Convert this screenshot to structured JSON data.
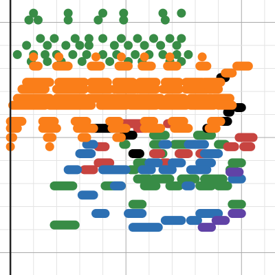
{
  "chart_data": {
    "type": "dash-plot",
    "xlim": [
      -0.45,
      11.45
    ],
    "ylim": [
      -5.97,
      5.97
    ],
    "xticks": [
      0,
      1,
      2,
      3,
      4,
      5,
      6,
      7,
      8,
      9,
      10,
      11
    ],
    "yticks": [
      -5,
      -4,
      -3,
      -2,
      -1,
      0,
      1,
      2,
      3,
      4,
      5
    ],
    "grid": true,
    "major_every": 5,
    "series": [
      {
        "color": "#388c46",
        "rows": [
          {
            "y": 5.4,
            "x": [
              1.0,
              2.5,
              4.0,
              4.9,
              6.6,
              7.4
            ]
          },
          {
            "y": 5.1,
            "x": [
              0.8,
              1.2,
              2.5,
              3.8,
              4.9,
              6.7
            ]
          },
          {
            "y": 4.3,
            "x": [
              1.3,
              1.9,
              2.8,
              3.4,
              4.0,
              4.8,
              5.5,
              6.2,
              6.9,
              7.4
            ]
          },
          {
            "y": 4.0,
            "x": [
              0.7,
              1.6,
              2.4,
              3.0,
              3.4,
              4.5,
              5.1,
              5.8,
              6.5,
              7.2
            ]
          },
          {
            "y": 3.6,
            "x": [
              0.3,
              1.0,
              1.5,
              2.0,
              2.7,
              3.3,
              4.0,
              4.6,
              5.4,
              6.0,
              6.6,
              7.2,
              7.7
            ]
          },
          {
            "y": 3.3,
            "x": [
              0.9,
              1.6,
              2.2,
              3.1,
              4.3,
              5.1,
              5.7,
              6.9,
              7.4
            ]
          },
          {
            "y": 0.1,
            "x_start": [
              6.2,
              8.1
            ],
            "x_end": [
              6.7,
              8.7
            ]
          },
          {
            "y": -0.3,
            "x_start": [
              4.9,
              6.2,
              7.1,
              9.0
            ],
            "x_end": [
              5.0,
              6.5,
              7.7,
              9.3
            ]
          },
          {
            "y": -0.7,
            "x_start": [
              5.3,
              6.2,
              7.3
            ],
            "x_end": [
              5.6,
              6.6,
              7.6
            ]
          },
          {
            "y": -1.1,
            "x_start": [
              5.5,
              9.6
            ],
            "x_end": [
              5.8,
              10.0
            ]
          },
          {
            "y": -1.4,
            "x_start": [
              5.2,
              9.5
            ],
            "x_end": [
              5.4,
              9.7
            ]
          },
          {
            "y": -1.8,
            "x_start": [
              5.5,
              6.2,
              7.4,
              8.4
            ],
            "x_end": [
              6.0,
              6.9,
              8.0,
              9.2
            ]
          },
          {
            "y": -2.1,
            "x_start": [
              1.9,
              4.1,
              5.8,
              6.9,
              8.2,
              9.0
            ],
            "x_end": [
              2.7,
              4.8,
              6.3,
              7.3,
              8.7,
              9.4
            ]
          },
          {
            "y": -2.9,
            "x_start": [
              5.3,
              9.6
            ],
            "x_end": [
              5.7,
              10.0
            ]
          },
          {
            "y": -3.8,
            "x_start": [
              1.9
            ],
            "x_end": [
              2.8
            ]
          }
        ]
      },
      {
        "color": "#c74440",
        "rows": [
          {
            "y": 0.6,
            "x_start": [
              4.6,
              6.8
            ],
            "x_end": [
              5.6,
              7.2
            ]
          },
          {
            "y": 0.4,
            "x_start": [
              5.5
            ],
            "x_end": [
              5.9
            ]
          },
          {
            "y": 0.0,
            "x_start": [
              9.9
            ],
            "x_end": [
              10.5
            ]
          },
          {
            "y": -0.4,
            "x_start": [
              3.8,
              9.4,
              10.1
            ],
            "x_end": [
              4.1,
              9.7,
              10.4
            ]
          },
          {
            "y": -0.7,
            "x_start": [
              6.2,
              7.3,
              8.2
            ],
            "x_end": [
              6.5,
              7.7,
              8.5
            ]
          },
          {
            "y": -1.1,
            "x_start": [
              3.8,
              6.6
            ],
            "x_end": [
              4.3,
              6.8
            ]
          },
          {
            "y": -1.4,
            "x_start": [
              3.2
            ],
            "x_end": [
              3.6
            ]
          }
        ]
      },
      {
        "color": "#2d70b3",
        "rows": [
          {
            "y": -0.3,
            "x_start": [
              3.3,
              6.6,
              7.7
            ],
            "x_end": [
              3.6,
              6.8,
              8.4
            ]
          },
          {
            "y": -0.7,
            "x_start": [
              3.0,
              8.4
            ],
            "x_end": [
              3.5,
              9.0
            ]
          },
          {
            "y": -1.1,
            "x_start": [
              6.0,
              7.0,
              8.2
            ],
            "x_end": [
              6.4,
              7.4,
              8.7
            ]
          },
          {
            "y": -1.4,
            "x_start": [
              2.5,
              4.0,
              5.7,
              6.6,
              7.8
            ],
            "x_end": [
              2.9,
              5.0,
              6.1,
              7.0,
              8.5
            ]
          },
          {
            "y": -1.8,
            "x_start": [
              9.6
            ],
            "x_end": [
              10.0
            ]
          },
          {
            "y": -2.1,
            "x_start": [
              4.5,
              7.6
            ],
            "x_end": [
              4.8,
              7.8
            ]
          },
          {
            "y": -2.5,
            "x_start": [
              3.1
            ],
            "x_end": [
              3.6
            ]
          },
          {
            "y": -3.3,
            "x_start": [
              3.7,
              5.1,
              8.2
            ],
            "x_end": [
              4.1,
              5.7,
              9.0
            ]
          },
          {
            "y": -3.6,
            "x_start": [
              6.7,
              7.8
            ],
            "x_end": [
              7.4,
              8.1
            ]
          },
          {
            "y": -3.9,
            "x_start": [
              5.3
            ],
            "x_end": [
              6.4
            ]
          }
        ]
      },
      {
        "color": "#6042a6",
        "rows": [
          {
            "y": -1.5,
            "x_start": [
              9.5
            ],
            "x_end": [
              9.9
            ]
          },
          {
            "y": -3.3,
            "x_start": [
              9.6
            ],
            "x_end": [
              10.0
            ]
          },
          {
            "y": -3.6,
            "x_start": [
              8.9
            ],
            "x_end": [
              9.3
            ]
          },
          {
            "y": -3.9,
            "x_start": [
              8.3
            ],
            "x_end": [
              8.7
            ]
          }
        ]
      },
      {
        "color": "#000000",
        "rows": [
          {
            "y": 2.6,
            "x_start": [
              9.1
            ],
            "x_end": [
              9.3
            ]
          },
          {
            "y": 1.3,
            "x_start": [
              9.8
            ],
            "x_end": [
              10.0
            ]
          },
          {
            "y": 1.1,
            "x_start": [
              9.4
            ],
            "x_end": [
              9.5
            ]
          },
          {
            "y": 0.7,
            "x_start": [
              9.1
            ],
            "x_end": [
              9.4
            ]
          },
          {
            "y": 0.4,
            "x_start": [
              3.5,
              8.5
            ],
            "x_end": [
              4.7,
              8.7
            ]
          },
          {
            "y": 0.1,
            "x_start": [
              4.9
            ],
            "x_end": [
              5.3
            ]
          },
          {
            "y": -0.7,
            "x_start": [
              5.3
            ],
            "x_end": [
              5.6
            ]
          }
        ]
      },
      {
        "color": "#fa7e19",
        "rows": [
          {
            "y": 3.5,
            "x": [
              1.0,
              2.1,
              3.7,
              4.8,
              5.8,
              6.9,
              8.3
            ]
          },
          {
            "y": 3.1,
            "x_start": [
              1.0,
              2.0,
              3.5,
              4.7,
              5.7,
              6.8,
              8.2,
              9.8
            ],
            "x_end": [
              1.2,
              2.5,
              3.9,
              5.1,
              6.1,
              7.2,
              8.5,
              10.3
            ]
          },
          {
            "y": 2.8,
            "x_start": [
              9.3
            ],
            "x_end": [
              9.6
            ]
          },
          {
            "y": 2.4,
            "x_start": [
              0.7,
              2.1,
              3.5,
              4.6,
              5.6,
              6.7,
              7.6,
              8.4
            ],
            "x_end": [
              1.7,
              3.2,
              4.2,
              5.3,
              6.3,
              7.3,
              8.3,
              9.1
            ]
          },
          {
            "y": 2.1,
            "x_start": [
              0.5,
              2.0,
              3.5,
              4.5,
              5.5,
              6.6,
              7.6,
              8.6
            ],
            "x_end": [
              1.5,
              3.2,
              4.3,
              5.4,
              6.3,
              7.3,
              8.5,
              9.0
            ]
          },
          {
            "y": 1.7,
            "x_start": [
              0.3,
              2.0,
              3.4,
              4.6,
              5.6,
              6.8,
              7.8,
              8.8
            ],
            "x_end": [
              1.7,
              3.2,
              4.5,
              5.5,
              6.5,
              7.5,
              8.7,
              9.5
            ]
          },
          {
            "y": 1.4,
            "x_start": [
              0.1,
              1.7,
              3.9,
              5.2,
              6.5,
              7.8,
              9.0
            ],
            "x_end": [
              1.5,
              3.5,
              5.0,
              6.3,
              7.6,
              8.8,
              9.6
            ]
          },
          {
            "y": 0.7,
            "x_start": [
              0.0,
              1.4,
              2.8,
              4.3,
              5.8,
              7.0,
              8.7
            ],
            "x_end": [
              0.5,
              1.9,
              3.3,
              4.7,
              6.2,
              7.5,
              9.1
            ]
          },
          {
            "y": 0.4,
            "x_start": [
              0.0,
              1.4,
              2.9,
              4.4,
              5.8,
              7.1,
              8.6
            ],
            "x_end": [
              0.3,
              2.0,
              3.6,
              5.0,
              6.5,
              7.7,
              8.9
            ]
          },
          {
            "y": 0.0,
            "x_start": [
              0.0,
              1.6,
              3.1,
              4.6
            ],
            "x_end": [
              0.1,
              1.8,
              3.3,
              4.8
            ]
          },
          {
            "y": -0.4,
            "x": [
              0.0,
              1.7
            ]
          }
        ]
      }
    ]
  }
}
